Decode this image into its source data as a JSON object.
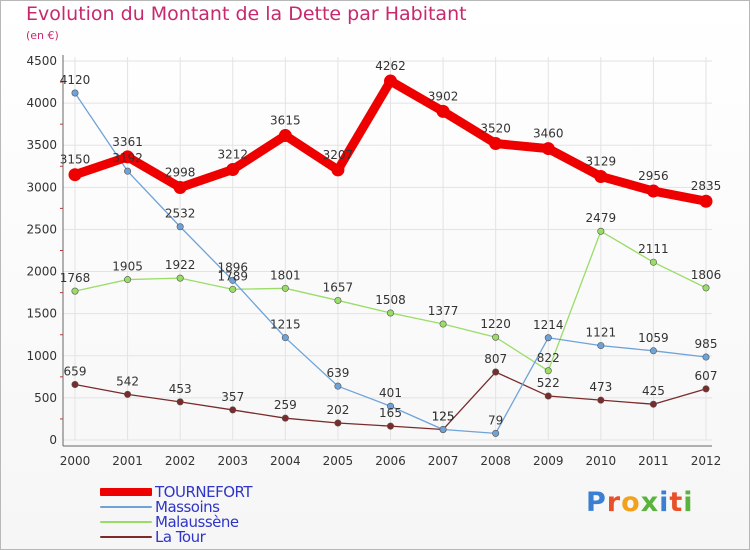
{
  "title": "Evolution du Montant de la Dette par Habitant",
  "subtitle": "(en €)",
  "logo_text": "Proxiti",
  "chart_data": {
    "type": "line",
    "x": [
      "2000",
      "2001",
      "2002",
      "2003",
      "2004",
      "2005",
      "2006",
      "2007",
      "2008",
      "2009",
      "2010",
      "2011",
      "2012"
    ],
    "yticks": [
      "0",
      "500",
      "1000",
      "1500",
      "2000",
      "2500",
      "3000",
      "3500",
      "4000",
      "4500"
    ],
    "ylim": [
      0,
      4500
    ],
    "grid": true,
    "legend_position": "bottom-left",
    "series": [
      {
        "name": "TOURNEFORT",
        "color": "#ee0000",
        "values": [
          3150,
          3361,
          2998,
          3212,
          3615,
          3207,
          4262,
          3902,
          3520,
          3460,
          3129,
          2956,
          2835
        ]
      },
      {
        "name": "Massoins",
        "color": "#6fa3d8",
        "values": [
          4120,
          3192,
          2532,
          1896,
          1215,
          639,
          401,
          125,
          79,
          1214,
          1121,
          1059,
          985
        ]
      },
      {
        "name": "Malaussène",
        "color": "#99dd66",
        "values": [
          1768,
          1905,
          1922,
          1789,
          1801,
          1657,
          1508,
          1377,
          1220,
          822,
          2479,
          2111,
          1806
        ]
      },
      {
        "name": "La Tour",
        "color": "#7a2b2b",
        "values": [
          659,
          542,
          453,
          357,
          259,
          202,
          165,
          125,
          807,
          522,
          473,
          425,
          607
        ]
      }
    ]
  }
}
